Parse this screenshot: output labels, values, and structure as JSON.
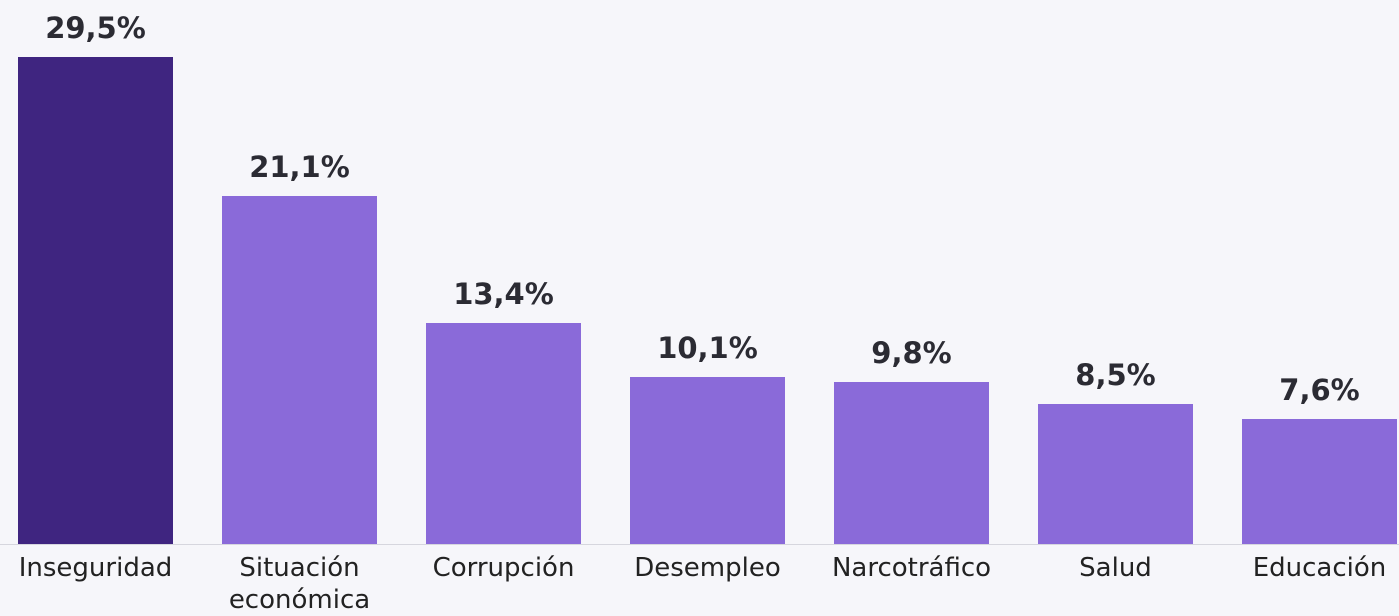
{
  "chart_data": {
    "type": "bar",
    "categories": [
      "Inseguridad",
      "Situación económica",
      "Corrupción",
      "Desempleo",
      "Narcotráfico",
      "Salud",
      "Educación"
    ],
    "values": [
      29.5,
      21.1,
      13.4,
      10.1,
      9.8,
      8.5,
      7.6
    ],
    "value_labels": [
      "29,5%",
      "21,1%",
      "13,4%",
      "10,1%",
      "9,8%",
      "8,5%",
      "7,6%"
    ],
    "colors": [
      "#3f2580",
      "#8a6ad9",
      "#8a6ad9",
      "#8a6ad9",
      "#8a6ad9",
      "#8a6ad9",
      "#8a6ad9"
    ]
  }
}
